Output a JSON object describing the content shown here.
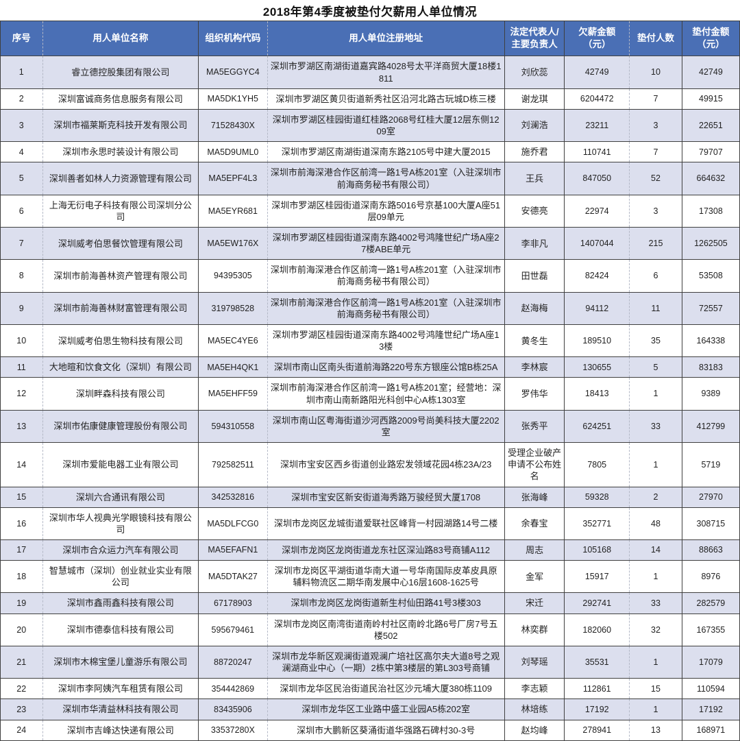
{
  "title": "2018年第4季度被垫付欠薪用人单位情况",
  "colors": {
    "header_bg": "#4a6fb5",
    "header_text": "#ffffff",
    "stripe_bg": "#dcdfee",
    "row_bg": "#ffffff",
    "border_dark": "#3f3f3f",
    "border_light": "#b3b8c6"
  },
  "table": {
    "columns": [
      {
        "key": "no",
        "label": "序号"
      },
      {
        "key": "name",
        "label": "用人单位名称"
      },
      {
        "key": "code",
        "label": "组织机构代码"
      },
      {
        "key": "address",
        "label": "用人单位注册地址"
      },
      {
        "key": "rep",
        "label": "法定代表人/\n主要负责人"
      },
      {
        "key": "owed",
        "label": "欠薪金额\n（元）"
      },
      {
        "key": "count",
        "label": "垫付人数"
      },
      {
        "key": "paid",
        "label": "垫付金额\n（元）"
      }
    ],
    "rows": [
      {
        "no": "1",
        "name": "睿立德控股集团有限公司",
        "code": "MA5EGGYC4",
        "address": "深圳市罗湖区南湖街道嘉宾路4028号太平洋商贸大厦18楼1811",
        "rep": "刘欣蕊",
        "owed": "42749",
        "count": "10",
        "paid": "42749"
      },
      {
        "no": "2",
        "name": "深圳富诚商务信息服务有限公司",
        "code": "MA5DK1YH5",
        "address": "深圳市罗湖区黄贝街道新秀社区沿河北路古玩城D栋三楼",
        "rep": "谢龙琪",
        "owed": "6204472",
        "count": "7",
        "paid": "49915"
      },
      {
        "no": "3",
        "name": "深圳市福莱斯克科技开发有限公司",
        "code": "71528430X",
        "address": "深圳市罗湖区桂园街道红桂路2068号红桂大厦12层东侧1209室",
        "rep": "刘澜浩",
        "owed": "23211",
        "count": "3",
        "paid": "22651"
      },
      {
        "no": "4",
        "name": "深圳市永思时装设计有限公司",
        "code": "MA5D9UML0",
        "address": "深圳市罗湖区南湖街道深南东路2105号中建大厦2015",
        "rep": "施乔君",
        "owed": "110741",
        "count": "7",
        "paid": "79707"
      },
      {
        "no": "5",
        "name": "深圳善者如林人力资源管理有限公司",
        "code": "MA5EPF4L3",
        "address": "深圳市前海深港合作区前湾一路1号A栋201室（入驻深圳市前海商务秘书有限公司）",
        "rep": "王兵",
        "owed": "847050",
        "count": "52",
        "paid": "664632"
      },
      {
        "no": "6",
        "name": "上海无衍电子科技有限公司深圳分公司",
        "code": "MA5EYR681",
        "address": "深圳市罗湖区桂园街道深南东路5016号京基100大厦A座51层09单元",
        "rep": "安德亮",
        "owed": "22974",
        "count": "3",
        "paid": "17308"
      },
      {
        "no": "7",
        "name": "深圳威考伯思餐饮管理有限公司",
        "code": "MA5EW176X",
        "address": "深圳市罗湖区桂园街道深南东路4002号鸿隆世纪广场A座27楼ABE单元",
        "rep": "李非凡",
        "owed": "1407044",
        "count": "215",
        "paid": "1262505"
      },
      {
        "no": "8",
        "name": "深圳市前海善林资产管理有限公司",
        "code": "94395305",
        "address": "深圳市前海深港合作区前湾一路1号A栋201室（入驻深圳市前海商务秘书有限公司）",
        "rep": "田世磊",
        "owed": "82424",
        "count": "6",
        "paid": "53508"
      },
      {
        "no": "9",
        "name": "深圳市前海善林财富管理有限公司",
        "code": "319798528",
        "address": "深圳市前海深港合作区前湾一路1号A栋201室（入驻深圳市前海商务秘书有限公司）",
        "rep": "赵海梅",
        "owed": "94112",
        "count": "11",
        "paid": "72557"
      },
      {
        "no": "10",
        "name": "深圳威考伯思生物科技有限公司",
        "code": "MA5EC4YE6",
        "address": "深圳市罗湖区桂园街道深南东路4002号鸿隆世纪广场A座13楼",
        "rep": "黄冬生",
        "owed": "189510",
        "count": "35",
        "paid": "164338"
      },
      {
        "no": "11",
        "name": "大地暄和饮食文化（深圳）有限公司",
        "code": "MA5EH4QK1",
        "address": "深圳市南山区南头街道前海路220号东方银座公馆B栋25A",
        "rep": "李林宸",
        "owed": "130655",
        "count": "5",
        "paid": "83183"
      },
      {
        "no": "12",
        "name": "深圳畔森科技有限公司",
        "code": "MA5EHFF59",
        "address": "深圳市前海深港合作区前湾一路1号A栋201室；经营地：深圳市南山南新路阳光科创中心A栋1303室",
        "rep": "罗伟华",
        "owed": "18413",
        "count": "1",
        "paid": "9389"
      },
      {
        "no": "13",
        "name": "深圳市佑康健康管理股份有限公司",
        "code": "594310558",
        "address": "深圳市南山区粤海街道沙河西路2009号尚美科技大厦2202室",
        "rep": "张秀平",
        "owed": "624251",
        "count": "33",
        "paid": "412799"
      },
      {
        "no": "14",
        "name": "深圳市爱能电器工业有限公司",
        "code": "792582511",
        "address": "深圳市宝安区西乡街道创业路宏发领域花园4栋23A/23",
        "rep": "受理企业破产申请不公布姓名",
        "owed": "7805",
        "count": "1",
        "paid": "5719"
      },
      {
        "no": "15",
        "name": "深圳六合通讯有限公司",
        "code": "342532816",
        "address": "深圳市宝安区新安街道海秀路万骏经贸大厦1708",
        "rep": "张海峰",
        "owed": "59328",
        "count": "2",
        "paid": "27970"
      },
      {
        "no": "16",
        "name": "深圳市华人视典光学眼镜科技有限公司",
        "code": "MA5DLFCG0",
        "address": "深圳市龙岗区龙城街道爱联社区峰背一村园湖路14号二楼",
        "rep": "余春宝",
        "owed": "352771",
        "count": "48",
        "paid": "308715"
      },
      {
        "no": "17",
        "name": "深圳市合众运力汽车有限公司",
        "code": "MA5EFAFN1",
        "address": "深圳市龙岗区龙岗街道龙东社区深汕路83号商铺A112",
        "rep": "周志",
        "owed": "105168",
        "count": "14",
        "paid": "88663"
      },
      {
        "no": "18",
        "name": "智慧城市（深圳）创业就业实业有限公司",
        "code": "MA5DTAK27",
        "address": "深圳市龙岗区平湖街道华南大道一号华南国际皮革皮具原辅料物流区二期华南发展中心16层1608-1625号",
        "rep": "金军",
        "owed": "15917",
        "count": "1",
        "paid": "8976"
      },
      {
        "no": "19",
        "name": "深圳市鑫雨鑫科技有限公司",
        "code": "67178903",
        "address": "深圳市龙岗区龙岗街道新生村仙田路41号3楼303",
        "rep": "宋迁",
        "owed": "292741",
        "count": "33",
        "paid": "282579"
      },
      {
        "no": "20",
        "name": "深圳市德泰信科技有限公司",
        "code": "595679461",
        "address": "深圳市龙岗区南湾街道南岭村社区南岭北路6号厂房7号五楼502",
        "rep": "林奕群",
        "owed": "182060",
        "count": "32",
        "paid": "167355"
      },
      {
        "no": "21",
        "name": "深圳市木棉宝堡儿童游乐有限公司",
        "code": "88720247",
        "address": "深圳市龙华新区观澜街道观澜广培社区高尔夫大道8号之观澜湖商业中心（一期）2栋中第3楼层的第L303号商铺",
        "rep": "刘琴瑶",
        "owed": "35531",
        "count": "1",
        "paid": "17079"
      },
      {
        "no": "22",
        "name": "深圳市李阿姨汽车租赁有限公司",
        "code": "354442869",
        "address": "深圳市龙华区民治街道民治社区沙元埔大厦380栋1109",
        "rep": "李志颖",
        "owed": "112861",
        "count": "15",
        "paid": "110594"
      },
      {
        "no": "23",
        "name": "深圳市华清益林科技有限公司",
        "code": "83435906",
        "address": "深圳市龙华区工业路中盛工业园A5栋202室",
        "rep": "林培练",
        "owed": "17192",
        "count": "1",
        "paid": "17192"
      },
      {
        "no": "24",
        "name": "深圳市吉峰达快递有限公司",
        "code": "33537280X",
        "address": "深圳市大鹏新区葵涌街道华强路石碑村30-3号",
        "rep": "赵均峰",
        "owed": "278941",
        "count": "13",
        "paid": "168971"
      }
    ]
  }
}
